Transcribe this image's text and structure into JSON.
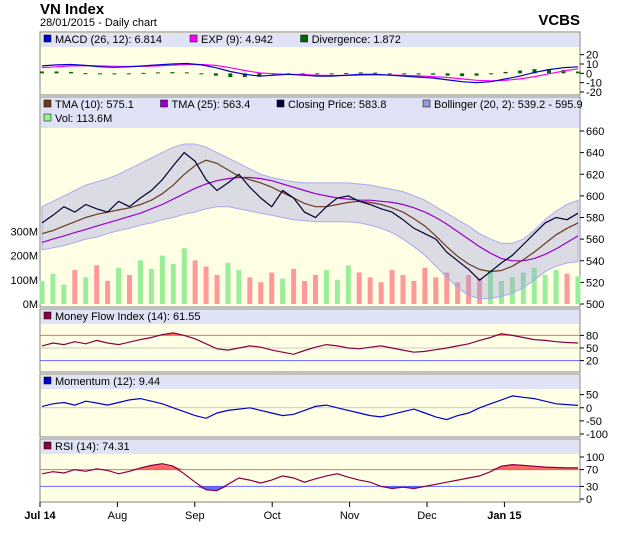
{
  "header": {
    "title": "VN Index",
    "subtitle": "28/01/2015 - Daily chart",
    "brand": "VCBS"
  },
  "x_axis": {
    "ticks": [
      {
        "label": "Jul 14",
        "bold": true
      },
      {
        "label": "Aug",
        "bold": false
      },
      {
        "label": "Sep",
        "bold": false
      },
      {
        "label": "Oct",
        "bold": false
      },
      {
        "label": "Nov",
        "bold": false
      },
      {
        "label": "Dec",
        "bold": false
      },
      {
        "label": "Jan 15",
        "bold": true
      }
    ]
  },
  "chart_data": [
    {
      "type": "line",
      "panel": "macd",
      "legend": [
        {
          "label": "MACD (26, 12): 6.814",
          "color": "#0000cc"
        },
        {
          "label": "EXP (9): 4.942",
          "color": "#ff00ff"
        },
        {
          "label": "Divergence: 1.872",
          "color": "#006600"
        }
      ],
      "y_ticks": [
        "20",
        "10",
        "0",
        "-10",
        "-20"
      ],
      "ylim": [
        -20,
        25
      ],
      "series": [
        {
          "values": [
            8,
            9,
            9.5,
            8.5,
            7,
            6.5,
            7,
            8,
            9,
            10,
            10.5,
            9,
            6,
            2,
            -1,
            -3,
            -2,
            -1,
            -2,
            -3,
            -3,
            -2,
            -1,
            -1,
            -2,
            -3,
            -4,
            -5,
            -7,
            -9,
            -10,
            -9,
            -6,
            -3,
            1,
            4,
            6,
            7
          ]
        },
        {
          "values": [
            6,
            7,
            8,
            8.3,
            8,
            7.5,
            7.3,
            7.5,
            8,
            8.7,
            9.5,
            9.5,
            8.5,
            6,
            3,
            0.5,
            -0.5,
            -1,
            -1.3,
            -2,
            -2.3,
            -2.3,
            -2,
            -1.7,
            -1.8,
            -2.2,
            -2.8,
            -3.5,
            -4.5,
            -6,
            -7.5,
            -8,
            -7.5,
            -6,
            -3.5,
            -0.5,
            2.5,
            4.9
          ]
        },
        {
          "values": [
            2,
            2,
            1.5,
            0.2,
            -1,
            -1,
            -0.3,
            0.5,
            1,
            1.3,
            1,
            -0.5,
            -2.5,
            -4,
            -4,
            -3.5,
            -1.5,
            0,
            -0.7,
            -1,
            -0.7,
            0.3,
            1,
            0.7,
            -0.2,
            -0.8,
            -1.2,
            -1.5,
            -2.5,
            -3,
            -2.5,
            -1,
            1.5,
            3,
            4.5,
            4.5,
            3.5,
            1.9
          ]
        }
      ]
    },
    {
      "type": "line",
      "panel": "price",
      "legend": [
        {
          "label": "TMA (10): 575.1",
          "color": "#6b3a1f"
        },
        {
          "label": "TMA (25): 563.4",
          "color": "#9900cc"
        },
        {
          "label": "Closing Price: 583.8",
          "color": "#000033"
        },
        {
          "label": "Bollinger (20, 2): 539.2 - 595.9",
          "color": "#9999dd"
        },
        {
          "label": "Vol: 113.6M",
          "color": "#99ee99"
        }
      ],
      "y_ticks": [
        "660",
        "640",
        "620",
        "600",
        "580",
        "560",
        "540",
        "520",
        "500"
      ],
      "ylim": [
        500,
        660
      ],
      "vol_ticks": [
        "300M",
        "200M",
        "100M",
        "0M"
      ],
      "vol_lim": [
        0,
        300
      ],
      "series": [
        {
          "name": "Closing Price",
          "values": [
            575,
            582,
            590,
            585,
            592,
            588,
            585,
            595,
            590,
            598,
            605,
            615,
            628,
            640,
            632,
            615,
            605,
            612,
            620,
            608,
            598,
            590,
            605,
            598,
            585,
            580,
            590,
            598,
            600,
            595,
            592,
            588,
            585,
            578,
            570,
            565,
            560,
            548,
            540,
            532,
            522,
            530,
            538,
            545,
            555,
            565,
            575,
            580,
            578,
            584
          ]
        },
        {
          "name": "TMA (10)",
          "values": [
            565,
            568,
            572,
            576,
            580,
            583,
            585,
            587,
            589,
            592,
            596,
            602,
            610,
            620,
            628,
            633,
            630,
            624,
            618,
            615,
            612,
            608,
            603,
            598,
            593,
            590,
            590,
            592,
            594,
            595,
            594,
            592,
            589,
            585,
            579,
            572,
            563,
            553,
            544,
            537,
            532,
            530,
            531,
            535,
            541,
            548,
            556,
            564,
            570,
            575
          ]
        },
        {
          "name": "TMA (25)",
          "values": [
            557,
            560,
            563,
            566,
            569,
            572,
            575,
            578,
            581,
            584,
            588,
            592,
            597,
            602,
            607,
            611,
            614,
            616,
            617,
            617,
            616,
            614,
            611,
            608,
            605,
            602,
            600,
            598,
            597,
            596,
            596,
            595,
            594,
            592,
            589,
            585,
            580,
            574,
            567,
            560,
            553,
            547,
            542,
            540,
            540,
            542,
            546,
            551,
            557,
            563
          ]
        },
        {
          "name": "Bollinger Upper",
          "values": [
            590,
            595,
            600,
            605,
            610,
            613,
            616,
            620,
            625,
            630,
            635,
            640,
            645,
            648,
            648,
            645,
            640,
            635,
            630,
            625,
            620,
            617,
            615,
            613,
            612,
            612,
            612,
            612,
            612,
            611,
            610,
            608,
            606,
            604,
            600,
            596,
            590,
            584,
            578,
            572,
            565,
            560,
            556,
            556,
            560,
            568,
            578,
            586,
            592,
            596
          ]
        },
        {
          "name": "Bollinger Lower",
          "values": [
            550,
            552,
            554,
            557,
            560,
            562,
            565,
            568,
            570,
            573,
            575,
            578,
            580,
            583,
            585,
            588,
            590,
            590,
            588,
            586,
            584,
            582,
            580,
            578,
            577,
            576,
            576,
            576,
            576,
            575,
            573,
            570,
            566,
            560,
            553,
            545,
            535,
            525,
            515,
            508,
            505,
            505,
            507,
            510,
            515,
            522,
            530,
            535,
            538,
            539
          ]
        },
        {
          "name": "Vol",
          "values": [
            95,
            125,
            80,
            140,
            110,
            160,
            95,
            150,
            120,
            180,
            145,
            200,
            165,
            230,
            180,
            155,
            120,
            170,
            140,
            110,
            90,
            130,
            105,
            145,
            95,
            120,
            140,
            100,
            160,
            130,
            110,
            90,
            140,
            120,
            95,
            150,
            110,
            130,
            90,
            120,
            105,
            140,
            95,
            110,
            130,
            150,
            120,
            140,
            125,
            114
          ]
        }
      ]
    },
    {
      "type": "line",
      "panel": "mfi",
      "legend": [
        {
          "label": "Money Flow Index (14): 61.55",
          "color": "#880044"
        }
      ],
      "y_ticks": [
        "80",
        "50",
        "20"
      ],
      "ylim": [
        0,
        100
      ],
      "series": [
        {
          "values": [
            55,
            62,
            58,
            65,
            60,
            68,
            62,
            58,
            64,
            70,
            75,
            82,
            86,
            80,
            72,
            60,
            48,
            45,
            50,
            55,
            52,
            45,
            40,
            35,
            44,
            52,
            58,
            55,
            50,
            48,
            52,
            55,
            50,
            45,
            40,
            42,
            46,
            50,
            55,
            60,
            68,
            75,
            84,
            80,
            75,
            70,
            68,
            65,
            63,
            62
          ]
        }
      ]
    },
    {
      "type": "line",
      "panel": "momentum",
      "legend": [
        {
          "label": "Momentum (12): 9.44",
          "color": "#0000cc"
        }
      ],
      "y_ticks": [
        "50",
        "0",
        "-50",
        "-100"
      ],
      "ylim": [
        -100,
        60
      ],
      "series": [
        {
          "values": [
            5,
            15,
            20,
            10,
            25,
            18,
            10,
            20,
            30,
            35,
            25,
            15,
            0,
            -15,
            -30,
            -40,
            -20,
            -10,
            -5,
            0,
            -10,
            -20,
            -30,
            -25,
            -10,
            5,
            10,
            0,
            -10,
            -20,
            -30,
            -35,
            -25,
            -15,
            -5,
            -20,
            -35,
            -45,
            -30,
            -20,
            0,
            15,
            30,
            45,
            40,
            35,
            25,
            15,
            12,
            9
          ]
        }
      ]
    },
    {
      "type": "line",
      "panel": "rsi",
      "legend": [
        {
          "label": "RSI (14): 74.31",
          "color": "#880044"
        }
      ],
      "y_ticks": [
        "100",
        "70",
        "30",
        "0"
      ],
      "ylim": [
        0,
        100
      ],
      "series": [
        {
          "values": [
            60,
            65,
            62,
            70,
            66,
            72,
            68,
            60,
            66,
            74,
            80,
            84,
            78,
            60,
            40,
            22,
            20,
            35,
            50,
            45,
            38,
            45,
            55,
            50,
            40,
            48,
            55,
            60,
            52,
            45,
            40,
            30,
            25,
            28,
            25,
            30,
            35,
            40,
            45,
            50,
            55,
            65,
            78,
            82,
            80,
            78,
            76,
            75,
            74,
            74
          ]
        }
      ]
    }
  ]
}
